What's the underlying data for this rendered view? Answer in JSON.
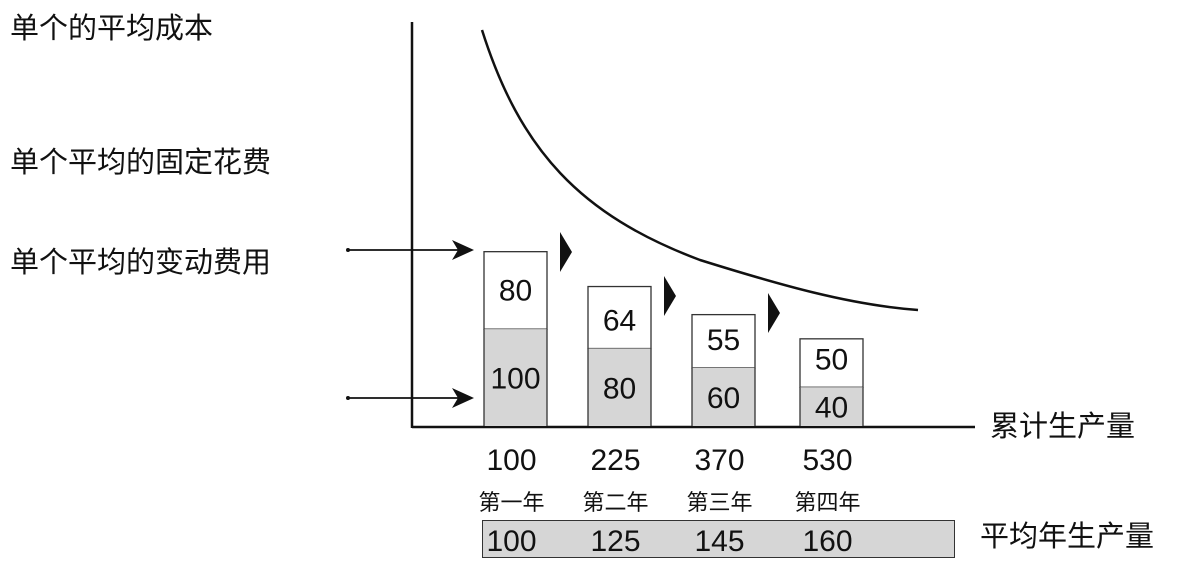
{
  "labels": {
    "avg_cost": "单个的平均成本",
    "avg_fixed": "单个平均的固定花费",
    "avg_variable": "单个平均的变动费用",
    "cumulative": "累计生产量",
    "avg_annual": "平均年生产量"
  },
  "chart_data": {
    "type": "bar",
    "categories": [
      "100",
      "225",
      "370",
      "530"
    ],
    "year_labels": [
      "第一年",
      "第二年",
      "第三年",
      "第四年"
    ],
    "series": [
      {
        "values": [
          100,
          80,
          60,
          40
        ],
        "color": "#d6d6d6"
      },
      {
        "values": [
          80,
          64,
          55,
          50
        ],
        "color": "#ffffff"
      }
    ],
    "annual_production": [
      "100",
      "125",
      "145",
      "160"
    ],
    "curve": "decreasing",
    "arrow_colors": {
      "stroke": "#111111"
    }
  }
}
